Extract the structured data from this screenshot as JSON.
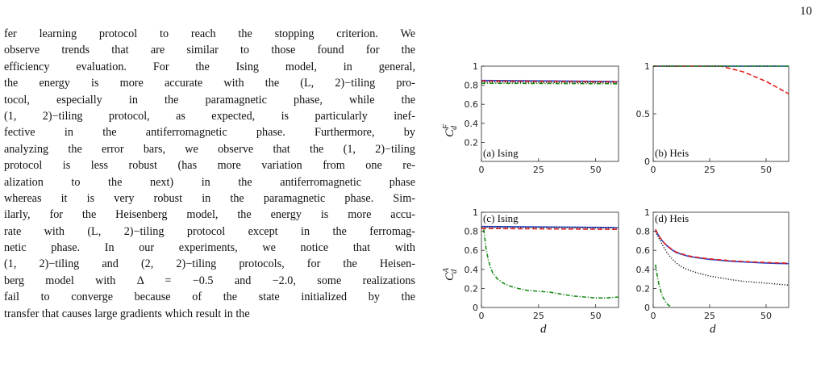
{
  "page_number": "10",
  "paragraph_lines": [
    "fer learning protocol to reach the stopping criterion. We",
    "observe trends that are similar to those found for the",
    "efficiency evaluation. For the Ising model, in general,",
    "the energy is more accurate with the (L, 2)−tiling pro-",
    "tocol, especially in the paramagnetic phase, while the",
    "(1, 2)−tiling protocol, as expected, is particularly inef-",
    "fective in the antiferromagnetic phase. Furthermore, by",
    "analyzing the error bars, we observe that the (1, 2)−tiling",
    "protocol is less robust (has more variation from one re-",
    "alization to the next) in the antiferromagnetic phase",
    "whereas it is very robust in the paramagnetic phase. Sim-",
    "ilarly, for the Heisenberg model, the energy is more accu-",
    "rate with (L, 2)−tiling protocol except in the ferromag-",
    "netic phase. In our experiments, we notice that with",
    "(1, 2)−tiling and (2, 2)−tiling protocols, for the Heisen-",
    "berg model with Δ = −0.5 and −2.0, some realizations",
    "fail to converge because of the state initialized by the",
    "transfer that causes large gradients which result in the"
  ],
  "figure": {
    "xlabel": "d",
    "ylabel_top": "C",
    "ylabel_top_sup": "F",
    "ylabel_bottom": "C",
    "ylabel_bottom_sup": "A",
    "ylabel_sub": "d"
  },
  "colors": {
    "blue": "#1f3fcc",
    "red": "#e02020",
    "black": "#111111",
    "green": "#1a8a1a"
  },
  "chart_data": [
    {
      "type": "line",
      "panel_label": "(a) Ising",
      "ylim": [
        0,
        1
      ],
      "xlim": [
        0,
        60
      ],
      "xticks": [
        0,
        25,
        50
      ],
      "yticks": [
        0.2,
        0.4,
        0.6,
        0.8,
        1
      ],
      "series": [
        {
          "style": "solid-blue",
          "x": [
            0,
            60
          ],
          "y": [
            0.85,
            0.84
          ]
        },
        {
          "style": "dashed-red",
          "x": [
            0,
            60
          ],
          "y": [
            0.845,
            0.835
          ]
        },
        {
          "style": "dotted-black",
          "x": [
            0,
            60
          ],
          "y": [
            0.835,
            0.825
          ]
        },
        {
          "style": "dashdot-green",
          "x": [
            0,
            60
          ],
          "y": [
            0.82,
            0.815
          ]
        }
      ]
    },
    {
      "type": "line",
      "panel_label": "(b) Heis",
      "ylim": [
        0,
        1
      ],
      "xlim": [
        0,
        60
      ],
      "xticks": [
        0,
        25,
        50
      ],
      "yticks": [
        0,
        0.5,
        1
      ],
      "series": [
        {
          "style": "solid-blue",
          "x": [
            0,
            60
          ],
          "y": [
            1,
            1
          ]
        },
        {
          "style": "dashed-red",
          "x": [
            0,
            30,
            40,
            50,
            60
          ],
          "y": [
            1,
            1,
            0.94,
            0.84,
            0.71
          ]
        },
        {
          "style": "dotted-black",
          "x": [
            0,
            60
          ],
          "y": [
            1,
            1
          ]
        },
        {
          "style": "dashdot-green",
          "x": [
            0,
            60
          ],
          "y": [
            1,
            1
          ]
        }
      ]
    },
    {
      "type": "line",
      "panel_label": "(c) Ising",
      "ylim": [
        0,
        1
      ],
      "xlim": [
        0,
        60
      ],
      "xticks": [
        0,
        25,
        50
      ],
      "yticks": [
        0,
        0.2,
        0.4,
        0.6,
        0.8,
        1
      ],
      "series": [
        {
          "style": "solid-blue",
          "x": [
            0,
            60
          ],
          "y": [
            0.85,
            0.84
          ]
        },
        {
          "style": "dashed-red",
          "x": [
            0,
            60
          ],
          "y": [
            0.83,
            0.82
          ]
        },
        {
          "style": "dotted-black",
          "x": [
            0,
            60
          ],
          "y": [
            0.845,
            0.835
          ]
        },
        {
          "style": "dashdot-green",
          "x": [
            1,
            2,
            3,
            4,
            5,
            7,
            10,
            13,
            16,
            20,
            25,
            30,
            35,
            40,
            45,
            50,
            55,
            60
          ],
          "y": [
            0.82,
            0.62,
            0.5,
            0.42,
            0.36,
            0.3,
            0.25,
            0.22,
            0.2,
            0.18,
            0.17,
            0.16,
            0.14,
            0.12,
            0.11,
            0.1,
            0.1,
            0.11
          ]
        }
      ]
    },
    {
      "type": "line",
      "panel_label": "(d) Heis",
      "ylim": [
        0,
        1
      ],
      "xlim": [
        0,
        60
      ],
      "xticks": [
        0,
        25,
        50
      ],
      "yticks": [
        0,
        0.2,
        0.4,
        0.6,
        0.8,
        1
      ],
      "series": [
        {
          "style": "solid-blue",
          "x": [
            1,
            2,
            4,
            6,
            8,
            10,
            13,
            16,
            20,
            25,
            30,
            35,
            40,
            45,
            50,
            55,
            60
          ],
          "y": [
            0.82,
            0.77,
            0.7,
            0.65,
            0.61,
            0.58,
            0.555,
            0.535,
            0.52,
            0.505,
            0.495,
            0.485,
            0.478,
            0.472,
            0.467,
            0.463,
            0.46
          ]
        },
        {
          "style": "dashed-red",
          "x": [
            1,
            2,
            4,
            6,
            8,
            10,
            13,
            16,
            20,
            25,
            30,
            35,
            40,
            45,
            50,
            55,
            60
          ],
          "y": [
            0.82,
            0.77,
            0.7,
            0.65,
            0.615,
            0.585,
            0.56,
            0.54,
            0.525,
            0.51,
            0.5,
            0.49,
            0.483,
            0.477,
            0.472,
            0.468,
            0.465
          ]
        },
        {
          "style": "dotted-black",
          "x": [
            1,
            2,
            4,
            6,
            8,
            10,
            13,
            16,
            20,
            25,
            30,
            35,
            40,
            45,
            50,
            55,
            60
          ],
          "y": [
            0.8,
            0.75,
            0.66,
            0.58,
            0.52,
            0.47,
            0.42,
            0.39,
            0.36,
            0.33,
            0.31,
            0.29,
            0.275,
            0.265,
            0.255,
            0.245,
            0.235
          ]
        },
        {
          "style": "dashdot-green",
          "x": [
            1,
            2,
            3,
            4,
            5,
            6,
            7,
            8
          ],
          "y": [
            0.45,
            0.3,
            0.2,
            0.12,
            0.08,
            0.04,
            0.02,
            0.005
          ]
        }
      ]
    }
  ]
}
